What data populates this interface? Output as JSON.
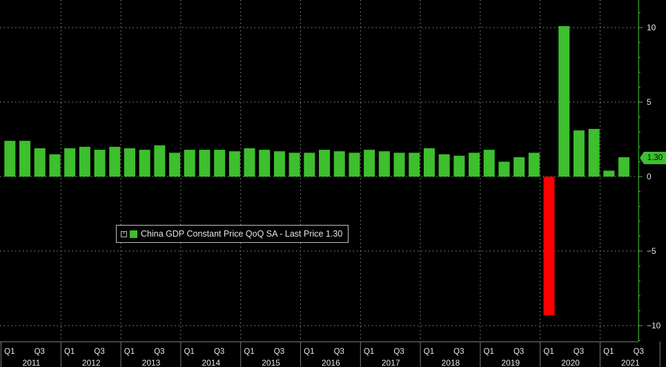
{
  "chart_data": {
    "type": "bar",
    "title": "",
    "xlabel": "",
    "ylabel": "",
    "ylim": [
      -11,
      12
    ],
    "y_ticks": [
      10,
      5,
      0,
      -5,
      -10
    ],
    "categories": [
      "2011Q1",
      "2011Q2",
      "2011Q3",
      "2011Q4",
      "2012Q1",
      "2012Q2",
      "2012Q3",
      "2012Q4",
      "2013Q1",
      "2013Q2",
      "2013Q3",
      "2013Q4",
      "2014Q1",
      "2014Q2",
      "2014Q3",
      "2014Q4",
      "2015Q1",
      "2015Q2",
      "2015Q3",
      "2015Q4",
      "2016Q1",
      "2016Q2",
      "2016Q3",
      "2016Q4",
      "2017Q1",
      "2017Q2",
      "2017Q3",
      "2017Q4",
      "2018Q1",
      "2018Q2",
      "2018Q3",
      "2018Q4",
      "2019Q1",
      "2019Q2",
      "2019Q3",
      "2019Q4",
      "2020Q1",
      "2020Q2",
      "2020Q3",
      "2020Q4",
      "2021Q1",
      "2021Q2"
    ],
    "series": [
      {
        "name": "China GDP Constant Price QoQ SA",
        "values": [
          2.4,
          2.4,
          1.9,
          1.5,
          1.9,
          2.0,
          1.8,
          2.0,
          1.9,
          1.8,
          2.1,
          1.6,
          1.8,
          1.8,
          1.8,
          1.7,
          1.9,
          1.8,
          1.7,
          1.6,
          1.6,
          1.8,
          1.7,
          1.6,
          1.8,
          1.7,
          1.6,
          1.6,
          1.9,
          1.5,
          1.4,
          1.6,
          1.8,
          1.0,
          1.3,
          1.6,
          -9.3,
          10.1,
          3.1,
          3.2,
          0.4,
          1.3
        ]
      }
    ],
    "x_tick_labels": [
      "Q1",
      "Q3"
    ],
    "year_labels": [
      "2011",
      "2012",
      "2013",
      "2014",
      "2015",
      "2016",
      "2017",
      "2018",
      "2019",
      "2020",
      "2021"
    ],
    "legend": "China GDP Constant Price QoQ SA - Last Price 1.30",
    "legend_position": "middle-left",
    "last_price_label": "1.30",
    "grid": true,
    "colors": {
      "positive": "#3dbf2e",
      "negative": "#ff0000",
      "background": "#000000",
      "axis": "#3dbf2e",
      "text": "#e6e6e6"
    }
  }
}
